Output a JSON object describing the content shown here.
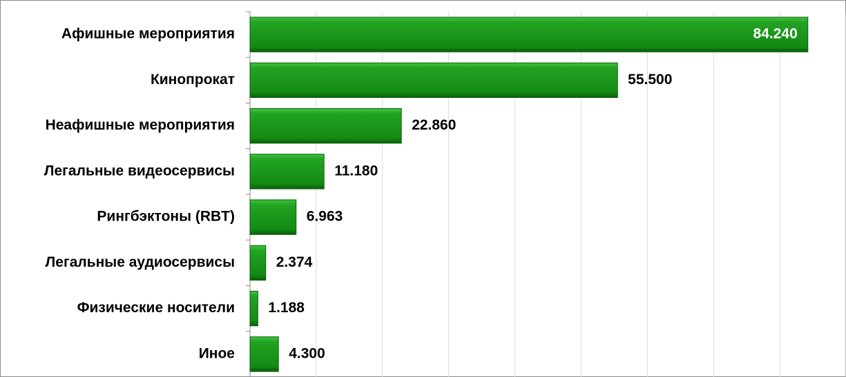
{
  "chart_data": {
    "type": "bar",
    "orientation": "horizontal",
    "categories": [
      "Афишные мероприятия",
      "Кинопрокат",
      "Неафишные мероприятия",
      "Легальные видеосервисы",
      "Рингбэктоны (RBT)",
      "Легальные аудиосервисы",
      "Физические носители",
      "Иное"
    ],
    "values": [
      84240,
      55500,
      22860,
      11180,
      6963,
      2374,
      1188,
      4300
    ],
    "value_labels": [
      "84.240",
      "55.500",
      "22.860",
      "11.180",
      "6.963",
      "2.374",
      "1.188",
      "4.300"
    ],
    "color": "#1e9a1e",
    "xlim": [
      0,
      90000
    ],
    "xticks": [
      0,
      10000,
      20000,
      30000,
      40000,
      50000,
      60000,
      70000,
      80000,
      90000
    ],
    "grid": true
  }
}
